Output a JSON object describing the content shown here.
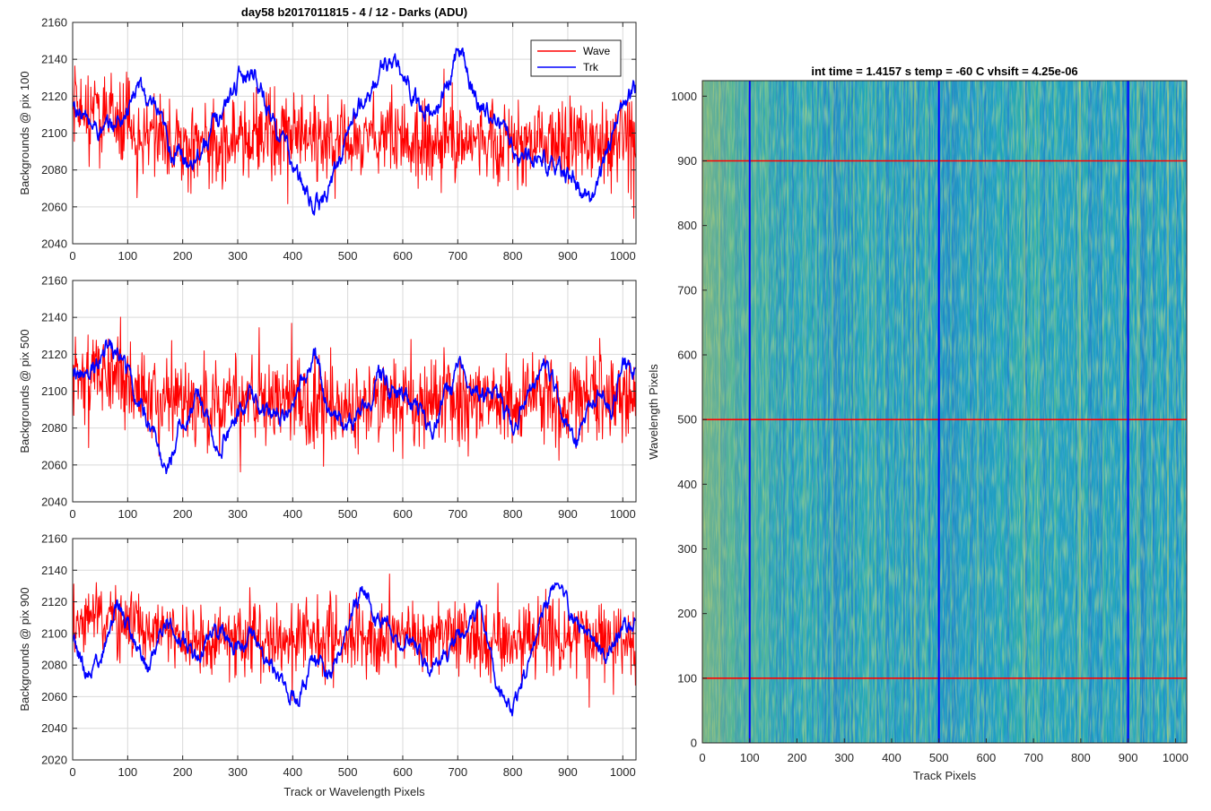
{
  "chart_data": [
    {
      "type": "line",
      "title": "day58 b2017011815 - 4 / 12 - Darks (ADU)",
      "xlabel": "",
      "ylabel": "Backgrounds @ pix 100",
      "xlim": [
        0,
        1024
      ],
      "ylim": [
        2040,
        2160
      ],
      "xticks": [
        0,
        100,
        200,
        300,
        400,
        500,
        600,
        700,
        800,
        900,
        1000
      ],
      "yticks": [
        2040,
        2060,
        2080,
        2100,
        2120,
        2140,
        2160
      ],
      "grid": true,
      "legend": {
        "placement": "top-right",
        "entries": [
          "Wave",
          "Trk"
        ]
      },
      "series": [
        {
          "name": "Wave",
          "color": "#ff0000",
          "style": "noise",
          "mean": 2100,
          "spread": 12,
          "min": 2050,
          "max": 2148,
          "x": [
            0,
            50,
            100,
            150,
            200,
            250,
            300,
            350,
            400,
            450,
            500,
            550,
            600,
            650,
            700,
            750,
            800,
            850,
            900,
            950,
            1024
          ],
          "y": [
            2112,
            2110,
            2106,
            2098,
            2094,
            2093,
            2096,
            2097,
            2096,
            2095,
            2096,
            2097,
            2096,
            2095,
            2096,
            2095,
            2094,
            2095,
            2094,
            2095,
            2098
          ]
        },
        {
          "name": "Trk",
          "color": "#0000ff",
          "style": "walk",
          "min": 2053,
          "max": 2155,
          "x": [
            0,
            30,
            60,
            90,
            120,
            150,
            180,
            210,
            240,
            270,
            300,
            330,
            360,
            390,
            420,
            450,
            480,
            510,
            540,
            570,
            600,
            630,
            660,
            690,
            705,
            730,
            760,
            790,
            820,
            850,
            880,
            910,
            940,
            970,
            1000,
            1024
          ],
          "y": [
            2115,
            2105,
            2100,
            2108,
            2125,
            2110,
            2090,
            2085,
            2095,
            2110,
            2130,
            2135,
            2110,
            2090,
            2068,
            2060,
            2080,
            2110,
            2120,
            2140,
            2130,
            2115,
            2110,
            2135,
            2150,
            2118,
            2112,
            2098,
            2085,
            2090,
            2080,
            2075,
            2060,
            2090,
            2115,
            2125
          ]
        }
      ]
    },
    {
      "type": "line",
      "title": "",
      "xlabel": "",
      "ylabel": "Backgrounds @ pix 500",
      "xlim": [
        0,
        1024
      ],
      "ylim": [
        2040,
        2160
      ],
      "xticks": [
        0,
        100,
        200,
        300,
        400,
        500,
        600,
        700,
        800,
        900,
        1000
      ],
      "yticks": [
        2040,
        2060,
        2080,
        2100,
        2120,
        2140,
        2160
      ],
      "grid": true,
      "series": [
        {
          "name": "Wave",
          "color": "#ff0000",
          "style": "noise",
          "mean": 2097,
          "spread": 13,
          "min": 2046,
          "max": 2148,
          "x": [
            0,
            50,
            100,
            150,
            200,
            250,
            300,
            350,
            400,
            450,
            500,
            550,
            600,
            650,
            700,
            750,
            800,
            850,
            900,
            950,
            1024
          ],
          "y": [
            2108,
            2110,
            2105,
            2098,
            2095,
            2094,
            2095,
            2096,
            2095,
            2094,
            2095,
            2096,
            2095,
            2094,
            2095,
            2094,
            2093,
            2094,
            2093,
            2094,
            2096
          ]
        },
        {
          "name": "Trk",
          "color": "#0000ff",
          "style": "walk",
          "min": 2048,
          "max": 2135,
          "x": [
            0,
            30,
            60,
            90,
            120,
            150,
            170,
            200,
            230,
            260,
            290,
            320,
            350,
            380,
            410,
            440,
            470,
            500,
            530,
            560,
            590,
            620,
            650,
            680,
            710,
            740,
            770,
            800,
            830,
            860,
            890,
            920,
            950,
            980,
            1000,
            1024
          ],
          "y": [
            2115,
            2105,
            2128,
            2115,
            2095,
            2075,
            2058,
            2085,
            2098,
            2070,
            2080,
            2100,
            2090,
            2088,
            2105,
            2118,
            2085,
            2080,
            2090,
            2110,
            2098,
            2092,
            2078,
            2100,
            2112,
            2098,
            2095,
            2080,
            2100,
            2118,
            2090,
            2075,
            2100,
            2090,
            2118,
            2110
          ]
        }
      ]
    },
    {
      "type": "line",
      "title": "",
      "xlabel": "Track or Wavelength Pixels",
      "ylabel": "Backgrounds @ pix 900",
      "xlim": [
        0,
        1024
      ],
      "ylim": [
        2020,
        2160
      ],
      "xticks": [
        0,
        100,
        200,
        300,
        400,
        500,
        600,
        700,
        800,
        900,
        1000
      ],
      "yticks": [
        2020,
        2040,
        2060,
        2080,
        2100,
        2120,
        2140,
        2160
      ],
      "grid": true,
      "series": [
        {
          "name": "Wave",
          "color": "#ff0000",
          "style": "noise",
          "mean": 2100,
          "spread": 12,
          "min": 2043,
          "max": 2152,
          "x": [
            0,
            50,
            100,
            150,
            200,
            250,
            300,
            350,
            400,
            450,
            500,
            550,
            600,
            650,
            700,
            750,
            800,
            850,
            900,
            950,
            1024
          ],
          "y": [
            2110,
            2110,
            2106,
            2100,
            2098,
            2097,
            2098,
            2097,
            2096,
            2097,
            2098,
            2099,
            2098,
            2097,
            2098,
            2096,
            2094,
            2096,
            2097,
            2096,
            2095
          ]
        },
        {
          "name": "Trk",
          "color": "#0000ff",
          "style": "walk",
          "min": 2040,
          "max": 2132,
          "x": [
            0,
            25,
            50,
            80,
            110,
            140,
            170,
            200,
            230,
            260,
            290,
            320,
            350,
            380,
            410,
            440,
            470,
            500,
            530,
            560,
            590,
            620,
            650,
            680,
            710,
            740,
            770,
            800,
            830,
            860,
            880,
            910,
            940,
            970,
            1000,
            1024
          ],
          "y": [
            2095,
            2075,
            2085,
            2115,
            2100,
            2075,
            2108,
            2098,
            2085,
            2105,
            2090,
            2100,
            2085,
            2070,
            2058,
            2085,
            2075,
            2110,
            2128,
            2108,
            2092,
            2098,
            2075,
            2090,
            2100,
            2115,
            2072,
            2055,
            2080,
            2118,
            2130,
            2110,
            2095,
            2085,
            2105,
            2110
          ]
        }
      ]
    },
    {
      "type": "heatmap",
      "title": "int time = 1.4157 s    temp = -60 C    vhsift = 4.25e-06",
      "xlabel": "Track Pixels",
      "ylabel": "Wavelength Pixels",
      "xlim": [
        0,
        1024
      ],
      "ylim": [
        0,
        1024
      ],
      "xticks": [
        0,
        100,
        200,
        300,
        400,
        500,
        600,
        700,
        800,
        900,
        1000
      ],
      "yticks": [
        0,
        100,
        200,
        300,
        400,
        500,
        600,
        700,
        800,
        900,
        1000
      ],
      "colormap": [
        "#1f78c8",
        "#1c9bc4",
        "#28b0a8",
        "#5bbf8a",
        "#a6c46a"
      ],
      "marker_lines": {
        "vertical": {
          "color": "#0000ff",
          "x": [
            100,
            500,
            900
          ]
        },
        "horizontal": {
          "color": "#ff0000",
          "y": [
            100,
            500,
            900
          ]
        }
      }
    }
  ]
}
